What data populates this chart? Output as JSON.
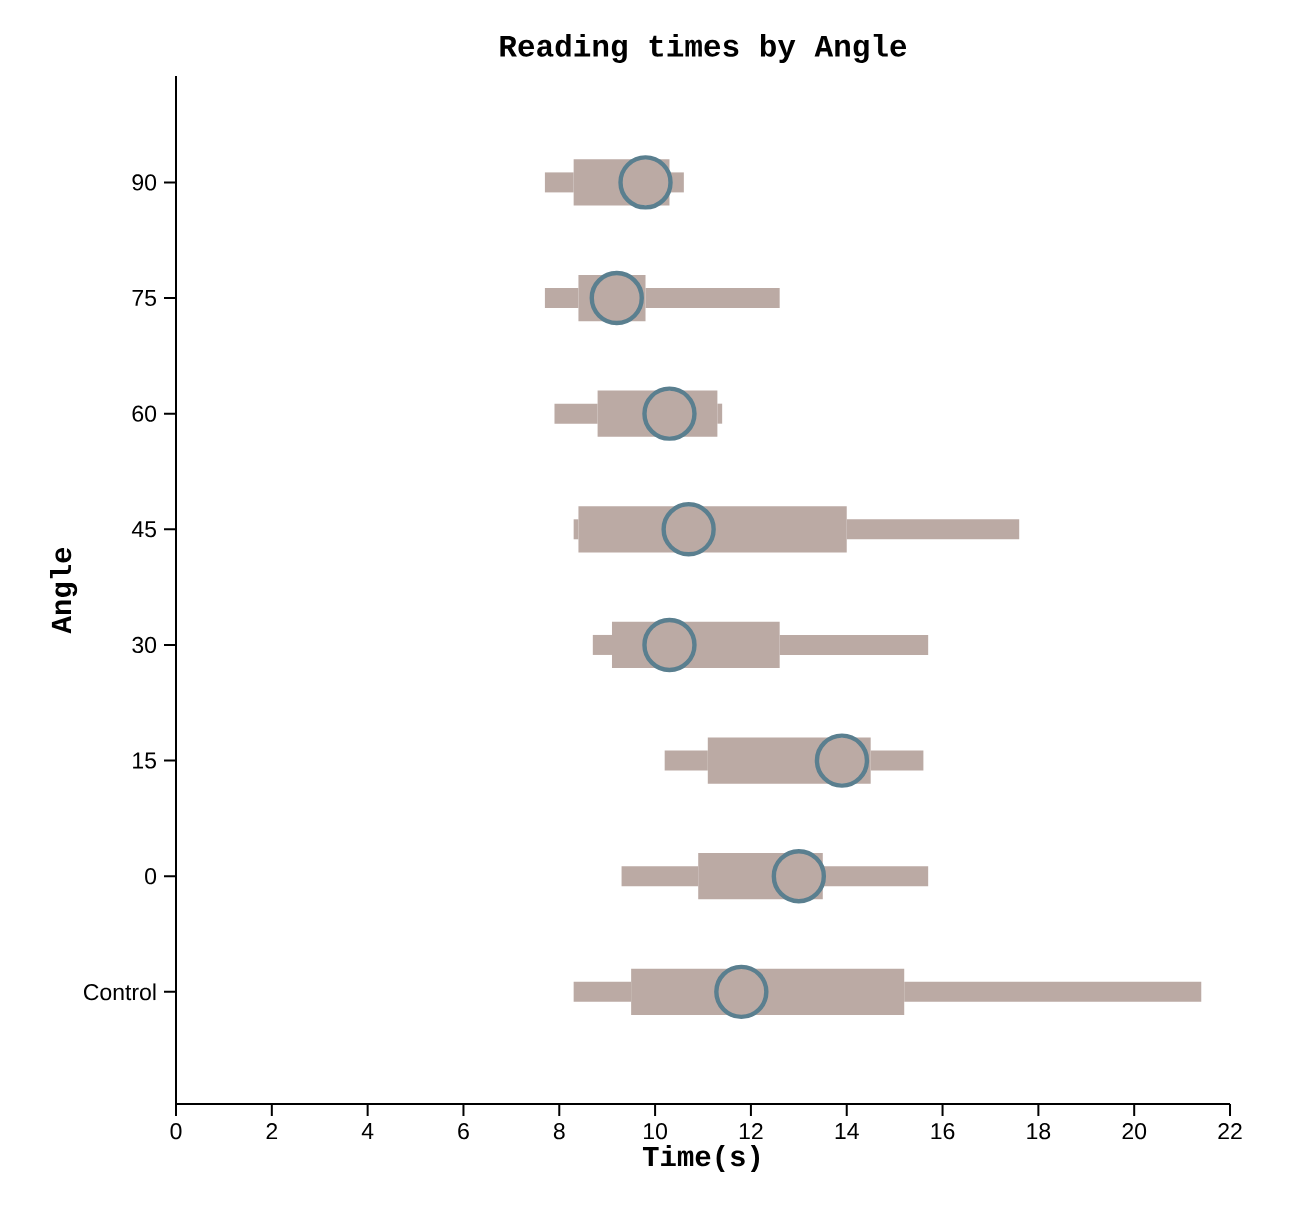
{
  "chart_data": {
    "type": "box",
    "orientation": "horizontal",
    "title": "Reading times by Angle",
    "xlabel": "Time(s)",
    "ylabel": "Angle",
    "categories": [
      "90",
      "75",
      "60",
      "45",
      "30",
      "15",
      "0",
      "Control"
    ],
    "color": "#bbaaa4",
    "boxes": [
      {
        "low": 7.7,
        "q1": 8.3,
        "median": 9.8,
        "q3": 10.3,
        "high": 10.6
      },
      {
        "low": 7.7,
        "q1": 8.4,
        "median": 9.2,
        "q3": 9.8,
        "high": 12.6
      },
      {
        "low": 7.9,
        "q1": 8.8,
        "median": 10.3,
        "q3": 11.3,
        "high": 11.4
      },
      {
        "low": 8.3,
        "q1": 8.4,
        "median": 10.7,
        "q3": 14.0,
        "high": 17.6
      },
      {
        "low": 8.7,
        "q1": 9.1,
        "median": 10.3,
        "q3": 12.6,
        "high": 15.7
      },
      {
        "low": 10.2,
        "q1": 11.1,
        "median": 13.9,
        "q3": 14.5,
        "high": 15.6
      },
      {
        "low": 9.3,
        "q1": 10.9,
        "median": 13.0,
        "q3": 13.5,
        "high": 15.7
      },
      {
        "low": 8.3,
        "q1": 9.5,
        "median": 11.8,
        "q3": 15.2,
        "high": 21.4
      }
    ],
    "xlim": [
      0,
      22
    ],
    "xticks": [
      0,
      2,
      4,
      6,
      8,
      10,
      12,
      14,
      16,
      18,
      20,
      22
    ]
  }
}
